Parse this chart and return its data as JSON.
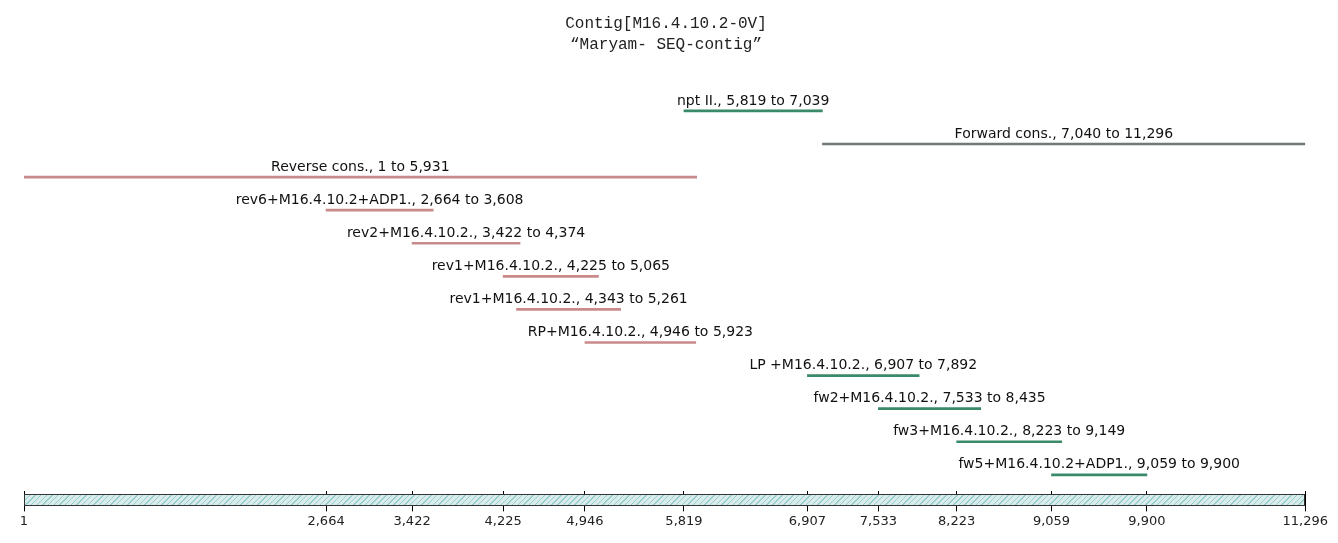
{
  "chart_data": {
    "type": "bar",
    "orientation": "horizontal",
    "title": "Contig[M16.4.10.2-0V]",
    "subtitle": "“Maryam- SEQ-contig”",
    "categories": [
      null,
      null,
      null,
      null,
      null,
      null,
      null,
      null,
      null,
      null,
      null,
      null
    ],
    "base": [
      5819,
      7040,
      1,
      2664,
      3422,
      4225,
      4343,
      4946,
      6907,
      7533,
      8223,
      9059
    ],
    "values": [
      1220,
      4256,
      5930,
      944,
      952,
      840,
      918,
      977,
      985,
      902,
      926,
      841
    ],
    "colors": [
      "#3a8a6a",
      "#707878",
      "#c88a8a",
      "#c88a8a",
      "#c88a8a",
      "#c88a8a",
      "#c88a8a",
      "#c88a8a",
      "#3a8a6a",
      "#3a8a6a",
      "#3a8a6a",
      "#3a8a6a"
    ],
    "value_labels": [
      "npt II., 5,819 to 7,039",
      "Forward cons., 7,040 to 11,296",
      "Reverse cons., 1 to 5,931",
      "rev6+M16.4.10.2+ADP1., 2,664 to 3,608",
      "rev2+M16.4.10.2., 3,422 to 4,374",
      "rev1+M16.4.10.2., 4,225 to 5,065",
      "rev1+M16.4.10.2., 4,343 to 5,261",
      "RP+M16.4.10.2., 4,946 to 5,923",
      "LP +M16.4.10.2., 6,907 to 7,892",
      "fw2+M16.4.10.2., 7,533 to 8,435",
      "fw3+M16.4.10.2., 8,223 to 9,149",
      "fw5+M16.4.10.2+ADP1., 9,059 to 9,900"
    ],
    "xlim": [
      1,
      11296
    ],
    "xticks": [
      1,
      {
        "value": 2664,
        "label": "2,664"
      },
      {
        "value": 3422,
        "label": "3,422"
      },
      {
        "value": 4225,
        "label": "4,225"
      },
      {
        "value": 4946,
        "label": "4,946"
      },
      {
        "value": 5819,
        "label": "5,819"
      },
      {
        "value": 6907,
        "label": "6,907"
      },
      {
        "value": 7533,
        "label": "7,533"
      },
      {
        "value": 8223,
        "label": "8,223"
      },
      {
        "value": 9059,
        "label": "9,059"
      },
      {
        "value": 9900,
        "label": "9,900"
      },
      {
        "value": 11296,
        "label": "11,296"
      }
    ],
    "tick_labels": "x",
    "grid": false,
    "legend": false
  }
}
